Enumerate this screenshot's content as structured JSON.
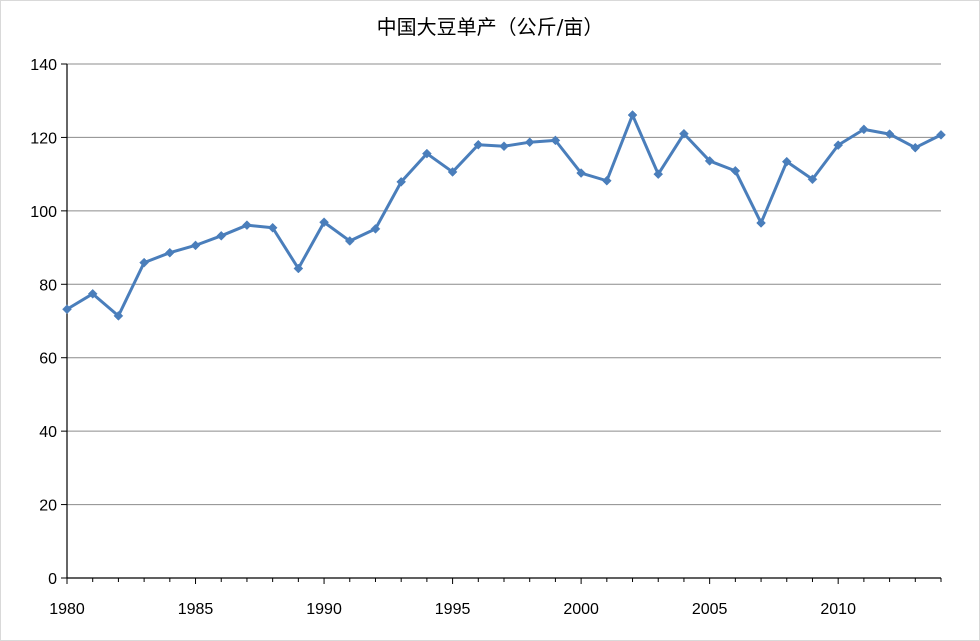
{
  "chart_data": {
    "type": "line",
    "title": "中国大豆单产（公斤/亩）",
    "xlabel": "",
    "ylabel": "",
    "xlim": [
      1980,
      2014
    ],
    "ylim": [
      0,
      140
    ],
    "y_ticks": [
      0,
      20,
      40,
      60,
      80,
      100,
      120,
      140
    ],
    "x_tick_labels": [
      1980,
      1985,
      1990,
      1995,
      2000,
      2005,
      2010
    ],
    "grid": true,
    "legend": "none",
    "line_color": "#4a7ebb",
    "series": [
      {
        "x": [
          1980,
          1981,
          1982,
          1983,
          1984,
          1985,
          1986,
          1987,
          1988,
          1989,
          1990,
          1991,
          1992,
          1993,
          1994,
          1995,
          1996,
          1997,
          1998,
          1999,
          2000,
          2001,
          2002,
          2003,
          2004,
          2005,
          2006,
          2007,
          2008,
          2009,
          2010,
          2011,
          2012,
          2013,
          2014
        ],
        "values": [
          73.2,
          77.4,
          71.4,
          85.9,
          88.6,
          90.6,
          93.2,
          96.1,
          95.4,
          84.3,
          96.9,
          91.8,
          95.1,
          107.9,
          115.6,
          110.6,
          118.0,
          117.6,
          118.7,
          119.2,
          110.3,
          108.2,
          126.1,
          110.0,
          121.0,
          113.6,
          110.9,
          96.7,
          113.4,
          108.6,
          117.9,
          122.2,
          120.9,
          117.2,
          120.7
        ]
      }
    ]
  }
}
